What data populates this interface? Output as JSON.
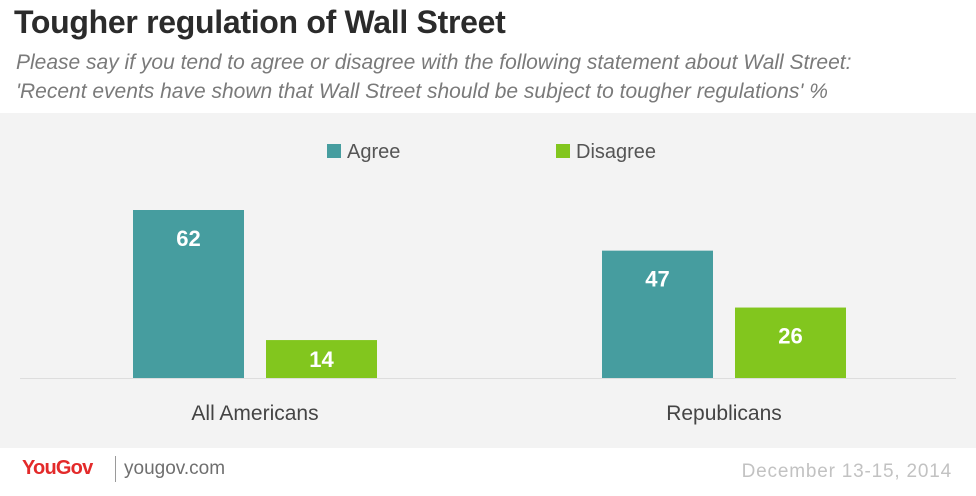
{
  "header": {
    "title": "Tougher regulation of Wall Street",
    "subtitle_line1": "Please say if you tend to agree or disagree with the following statement about Wall Street:",
    "subtitle_line2": "'Recent events have shown that Wall Street should be subject to tougher regulations' %"
  },
  "footer": {
    "brand": "YouGov",
    "site": "yougov.com",
    "date": "December 13-15, 2014"
  },
  "colors": {
    "agree": "#469d9f",
    "disagree": "#82c61e",
    "background": "#f3f3f3"
  },
  "chart_data": {
    "type": "bar",
    "categories": [
      "All Americans",
      "Republicans"
    ],
    "series": [
      {
        "name": "Agree",
        "values": [
          62,
          47
        ]
      },
      {
        "name": "Disagree",
        "values": [
          14,
          26
        ]
      }
    ],
    "ylim": [
      0,
      62
    ],
    "grid": false,
    "legend": "top-center",
    "data_labels": true
  }
}
